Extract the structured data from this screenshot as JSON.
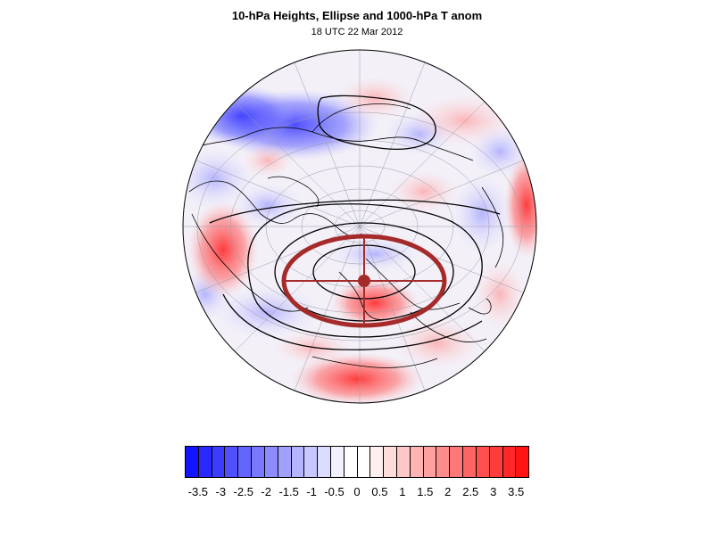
{
  "title": "10-hPa Heights, Ellipse and 1000-hPa T anom",
  "subtitle": "18 UTC 22 Mar 2012",
  "colorbar": {
    "labels": [
      "-3.5",
      "-3",
      "-2.5",
      "-2",
      "-1.5",
      "-1",
      "-0.5",
      "0",
      "0.5",
      "1",
      "1.5",
      "2",
      "2.5",
      "3",
      "3.5"
    ],
    "colors": [
      "#1414ff",
      "#2828ff",
      "#3c3cff",
      "#5050ff",
      "#6464ff",
      "#7878ff",
      "#8c8cff",
      "#a0a0ff",
      "#b4b4ff",
      "#c8c8ff",
      "#dcdcff",
      "#f0f0ff",
      "#ffffff",
      "#ffffff",
      "#fff0f0",
      "#ffdcdc",
      "#ffc8c8",
      "#ffb4b4",
      "#ffa0a0",
      "#ff8c8c",
      "#ff7878",
      "#ff6464",
      "#ff5050",
      "#ff3c3c",
      "#ff2828",
      "#ff1414"
    ]
  },
  "map": {
    "projection": "orthographic-north-polar",
    "ellipse_color": "#a52a2a",
    "ellipse_center_color": "#a52a2a",
    "negative_color": "#3232ff",
    "positive_color": "#ff3232",
    "contour_color": "#000000"
  }
}
